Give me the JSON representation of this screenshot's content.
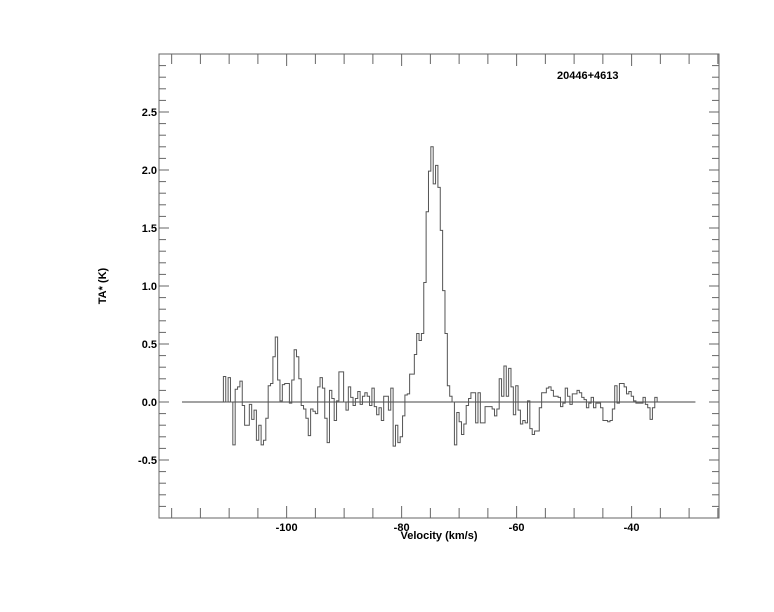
{
  "chart_data": {
    "type": "line",
    "style": "histogram-step",
    "title": "20446+4613",
    "xlabel": "Velocity (km/s)",
    "ylabel": "TA* (K)",
    "xlim": [
      -122.2,
      -24.8
    ],
    "ylim": [
      -1.0,
      3.0
    ],
    "x_ticks": [
      -100,
      -80,
      -60,
      -40
    ],
    "x_tick_labels": [
      "-100",
      "-80",
      "-60",
      "-40"
    ],
    "x_minor_step": 5,
    "y_ticks": [
      -0.5,
      0.0,
      0.5,
      1.0,
      1.5,
      2.0,
      2.5
    ],
    "y_tick_labels": [
      "-0.5",
      "0.0",
      "0.5",
      "1.0",
      "1.5",
      "2.0",
      "2.5"
    ],
    "y_minor_step": 0.1,
    "grid": false,
    "baseline": {
      "y": 0.0,
      "x_range": [
        -118.2,
        -28.9
      ]
    },
    "series": [
      {
        "velocity_start": -111.0,
        "channel_width": 0.41,
        "values": [
          0.22,
          0,
          0.21,
          0,
          -0.37,
          0.11,
          0.13,
          0.18,
          -0.03,
          -0.2,
          -0.2,
          -0.02,
          -0.15,
          -0.07,
          -0.33,
          -0.2,
          -0.37,
          -0.33,
          -0.14,
          0.14,
          0.16,
          0.39,
          0.56,
          0.19,
          0.01,
          0.15,
          0.16,
          0.16,
          -0.01,
          0.19,
          0.45,
          0.39,
          0.2,
          -0.03,
          -0.06,
          -0.14,
          -0.29,
          -0.06,
          -0.08,
          -0.1,
          0.13,
          0.21,
          0.12,
          -0.14,
          -0.35,
          0.1,
          0.03,
          -0.16,
          0.01,
          0.26,
          0.26,
          0,
          -0.07,
          0.13,
          0.04,
          -0.03,
          0.03,
          0.09,
          -0.02,
          0.05,
          0.08,
          0.05,
          -0.03,
          0.12,
          -0.04,
          -0.11,
          -0.05,
          -0.16,
          0.05,
          0.05,
          -0.07,
          0.12,
          -0.38,
          -0.2,
          -0.35,
          -0.3,
          -0.12,
          0.06,
          0.07,
          0.24,
          0.24,
          0.41,
          0.59,
          0.53,
          0.59,
          1.03,
          1.64,
          1.99,
          2.2,
          1.88,
          2.04,
          1.85,
          1.48,
          0.96,
          0.59,
          0.14,
          0.05,
          0,
          -0.37,
          -0.09,
          -0.17,
          -0.28,
          -0.19,
          -0.03,
          0.03,
          0.08,
          0.08,
          -0.18,
          0.08,
          -0.18,
          -0.18,
          -0.04,
          -0.04,
          -0.04,
          -0.06,
          -0.12,
          -0.06,
          0.2,
          0.05,
          0.31,
          0.05,
          0.29,
          0.13,
          -0.11,
          0.14,
          -0.07,
          -0.19,
          -0.16,
          -0.18,
          0.01,
          -0.23,
          -0.28,
          -0.25,
          -0.25,
          -0.05,
          0.08,
          0.08,
          0.12,
          0.13,
          0.1,
          0.05,
          0.05,
          0.04,
          -0.04,
          -0.01,
          0.12,
          0.05,
          -0.02,
          0.07,
          0.07,
          0.1,
          0.08,
          0.04,
          0.02,
          -0.05,
          -0.01,
          0.04,
          -0.05,
          -0.01,
          -0.01,
          -0.05,
          -0.16,
          -0.16,
          -0.17,
          -0.16,
          -0.06,
          0.14,
          -0.01,
          0.16,
          0.16,
          0.13,
          0.07,
          0.09,
          0.05,
          0.01,
          -0.01,
          -0.01,
          -0.01,
          0.04,
          -0.02,
          -0.05,
          -0.15,
          -0.05,
          0.04
        ]
      }
    ],
    "colors": {
      "line": "#555555",
      "axes": "#666666"
    }
  }
}
